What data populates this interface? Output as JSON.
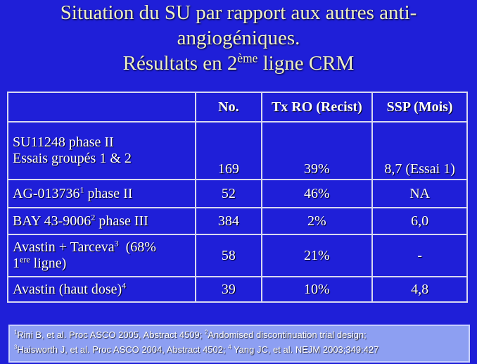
{
  "title": {
    "lines": [
      [
        {
          "t": "Situation du SU par rapport aux autres anti-"
        }
      ],
      [
        {
          "t": "angiogéniques."
        }
      ],
      [
        {
          "t": "Résultats en 2"
        },
        {
          "sup": "ème"
        },
        {
          "t": " ligne CRM"
        }
      ]
    ]
  },
  "table": {
    "header": [
      "No.",
      "Tx RO (Recist)",
      "SSP (Mois)"
    ],
    "rows": [
      {
        "label": [
          [
            {
              "t": "SU11248 phase II"
            }
          ],
          [
            {
              "t": "Essais groupés 1 & 2"
            }
          ]
        ],
        "cells": [
          "169",
          "39%",
          "8,7 (Essai 1)"
        ]
      },
      {
        "label": [
          [
            {
              "t": "AG-013736"
            },
            {
              "sup": "1"
            },
            {
              "t": " phase II"
            }
          ]
        ],
        "cells": [
          "52",
          "46%",
          "NA"
        ]
      },
      {
        "label": [
          [
            {
              "t": "BAY 43-9006"
            },
            {
              "sup": "2"
            },
            {
              "t": " phase III"
            }
          ]
        ],
        "cells": [
          "384",
          "2%",
          "6,0"
        ]
      },
      {
        "label": [
          [
            {
              "t": "Avastin + Tarceva"
            },
            {
              "sup": "3"
            },
            {
              "t": "  (68%"
            }
          ],
          [
            {
              "t": "1"
            },
            {
              "sup": "ere"
            },
            {
              "t": " ligne)"
            }
          ]
        ],
        "cells": [
          "58",
          "21%",
          "-"
        ]
      },
      {
        "label": [
          [
            {
              "t": "Avastin (haut dose)"
            },
            {
              "sup": "4"
            }
          ]
        ],
        "cells": [
          "39",
          "10%",
          "4,8"
        ]
      }
    ]
  },
  "footnote": {
    "lines": [
      [
        {
          "sup": "1"
        },
        {
          "t": "Rini B, et al. Proc ASCO 2005, Abstract 4509; "
        },
        {
          "sup": "2"
        },
        {
          "t": "Andomised discontinuation trial design;"
        }
      ],
      [
        {
          "sup": "3"
        },
        {
          "t": "Haisworth J, et al. Proc ASCO 2004, Abstract 4502; "
        },
        {
          "sup": "4"
        },
        {
          "t": " Yang JC, et al. NEJM 2003;349:427"
        }
      ]
    ]
  }
}
